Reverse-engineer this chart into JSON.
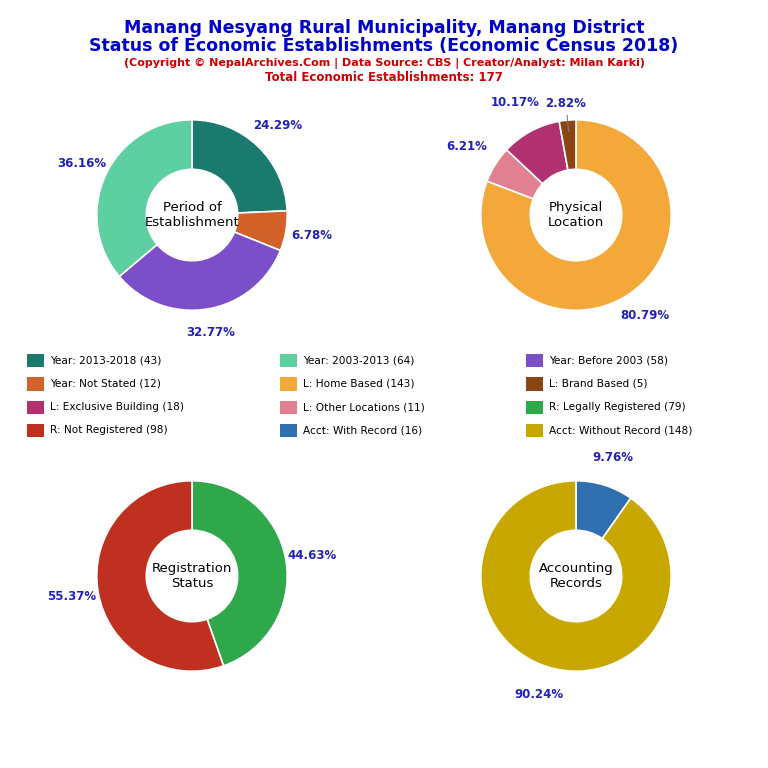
{
  "title_line1": "Manang Nesyang Rural Municipality, Manang District",
  "title_line2": "Status of Economic Establishments (Economic Census 2018)",
  "subtitle": "(Copyright © NepalArchives.Com | Data Source: CBS | Creator/Analyst: Milan Karki)",
  "subtitle2": "Total Economic Establishments: 177",
  "title_color": "#0000cc",
  "subtitle_color": "#cc0000",
  "chart1_title": "Period of\nEstablishment",
  "chart1_values": [
    43,
    12,
    58,
    64
  ],
  "chart1_colors": [
    "#1a7a6e",
    "#d2622a",
    "#7b4fc9",
    "#5ecfa0"
  ],
  "chart1_pcts": [
    "24.29%",
    "6.78%",
    "32.77%",
    "36.16%"
  ],
  "chart2_title": "Physical\nLocation",
  "chart2_values": [
    143,
    11,
    18,
    5
  ],
  "chart2_colors": [
    "#f5a83a",
    "#e08090",
    "#b03070",
    "#8b4513"
  ],
  "chart2_pcts": [
    "80.79%",
    "6.21%",
    "10.17%",
    "2.82%"
  ],
  "chart3_title": "Registration\nStatus",
  "chart3_values": [
    79,
    98
  ],
  "chart3_colors": [
    "#2ea84b",
    "#c03020"
  ],
  "chart3_pcts": [
    "44.63%",
    "55.37%"
  ],
  "chart4_title": "Accounting\nRecords",
  "chart4_values": [
    16,
    148
  ],
  "chart4_colors": [
    "#3070b0",
    "#c8a800"
  ],
  "chart4_pcts": [
    "9.76%",
    "90.24%"
  ],
  "legend_items": [
    {
      "label": "Year: 2013-2018 (43)",
      "color": "#1a7a6e"
    },
    {
      "label": "Year: 2003-2013 (64)",
      "color": "#5ecfa0"
    },
    {
      "label": "Year: Before 2003 (58)",
      "color": "#7b4fc9"
    },
    {
      "label": "Year: Not Stated (12)",
      "color": "#d2622a"
    },
    {
      "label": "L: Home Based (143)",
      "color": "#f5a83a"
    },
    {
      "label": "L: Brand Based (5)",
      "color": "#8b4513"
    },
    {
      "label": "L: Exclusive Building (18)",
      "color": "#b03070"
    },
    {
      "label": "L: Other Locations (11)",
      "color": "#e08090"
    },
    {
      "label": "R: Legally Registered (79)",
      "color": "#2ea84b"
    },
    {
      "label": "R: Not Registered (98)",
      "color": "#c03020"
    },
    {
      "label": "Acct: With Record (16)",
      "color": "#3070b0"
    },
    {
      "label": "Acct: Without Record (148)",
      "color": "#c8a800"
    }
  ],
  "pct_color": "#2222bb"
}
